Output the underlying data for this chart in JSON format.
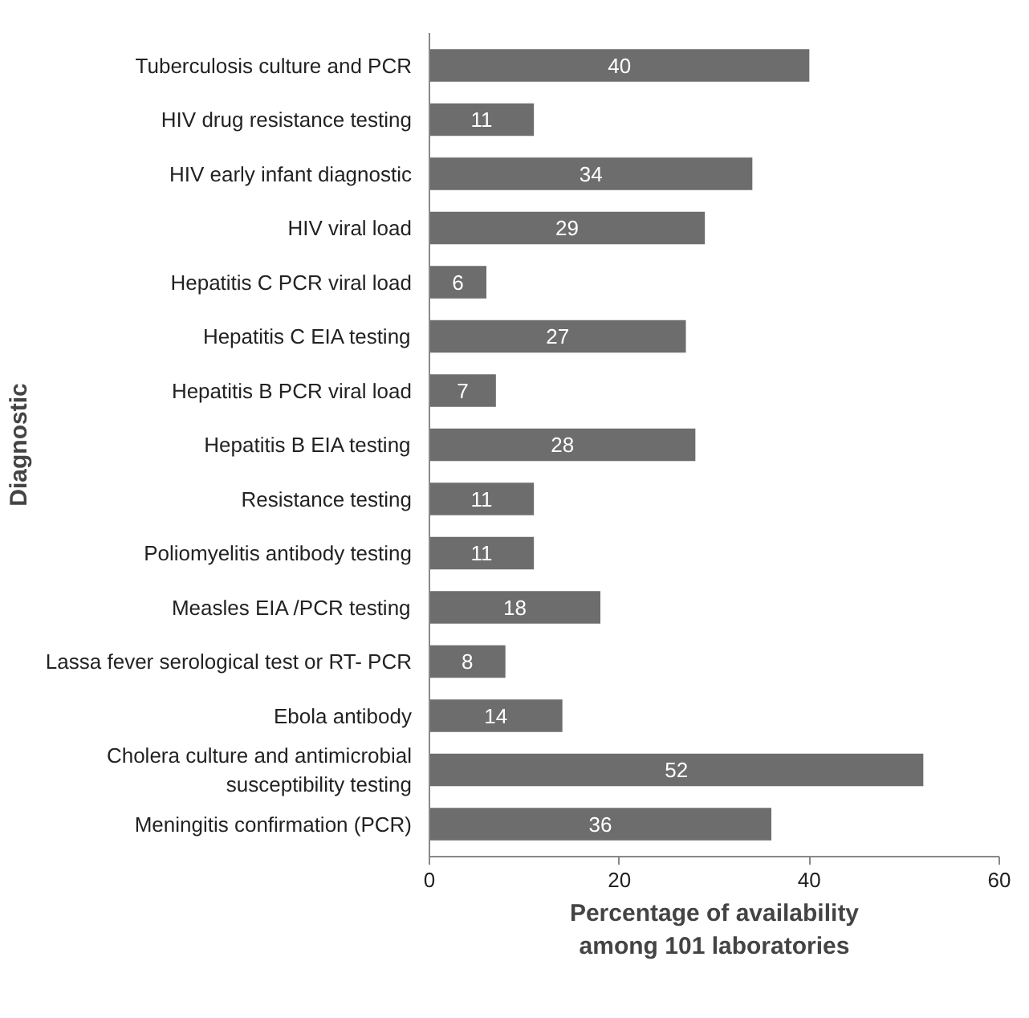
{
  "chart_data": {
    "type": "bar",
    "orientation": "horizontal",
    "xlabel": "Percentage of availability among 101 laboratories",
    "ylabel": "Diagnostic",
    "categories": [
      "Tuberculosis culture and PCR",
      "HIV drug resistance testing",
      "HIV early infant diagnostic",
      "HIV viral load",
      "Hepatitis C PCR viral load",
      "Hepatitis C EIA testing",
      "Hepatitis B PCR viral load",
      "Hepatitis B EIA testing",
      "Resistance testing",
      "Poliomyelitis antibody testing",
      "Measles EIA /PCR testing",
      "Lassa fever serological test or RT- PCR",
      "Ebola antibody",
      "Cholera culture and antimicrobial susceptibility testing",
      "Meningitis confirmation (PCR)"
    ],
    "values": [
      40,
      11,
      34,
      29,
      6,
      27,
      7,
      28,
      11,
      11,
      18,
      8,
      14,
      52,
      36
    ],
    "color": "#6d6d6d",
    "xlim": [
      0,
      60
    ],
    "xticks": [
      0,
      20,
      40,
      60
    ],
    "data_labels": true
  }
}
